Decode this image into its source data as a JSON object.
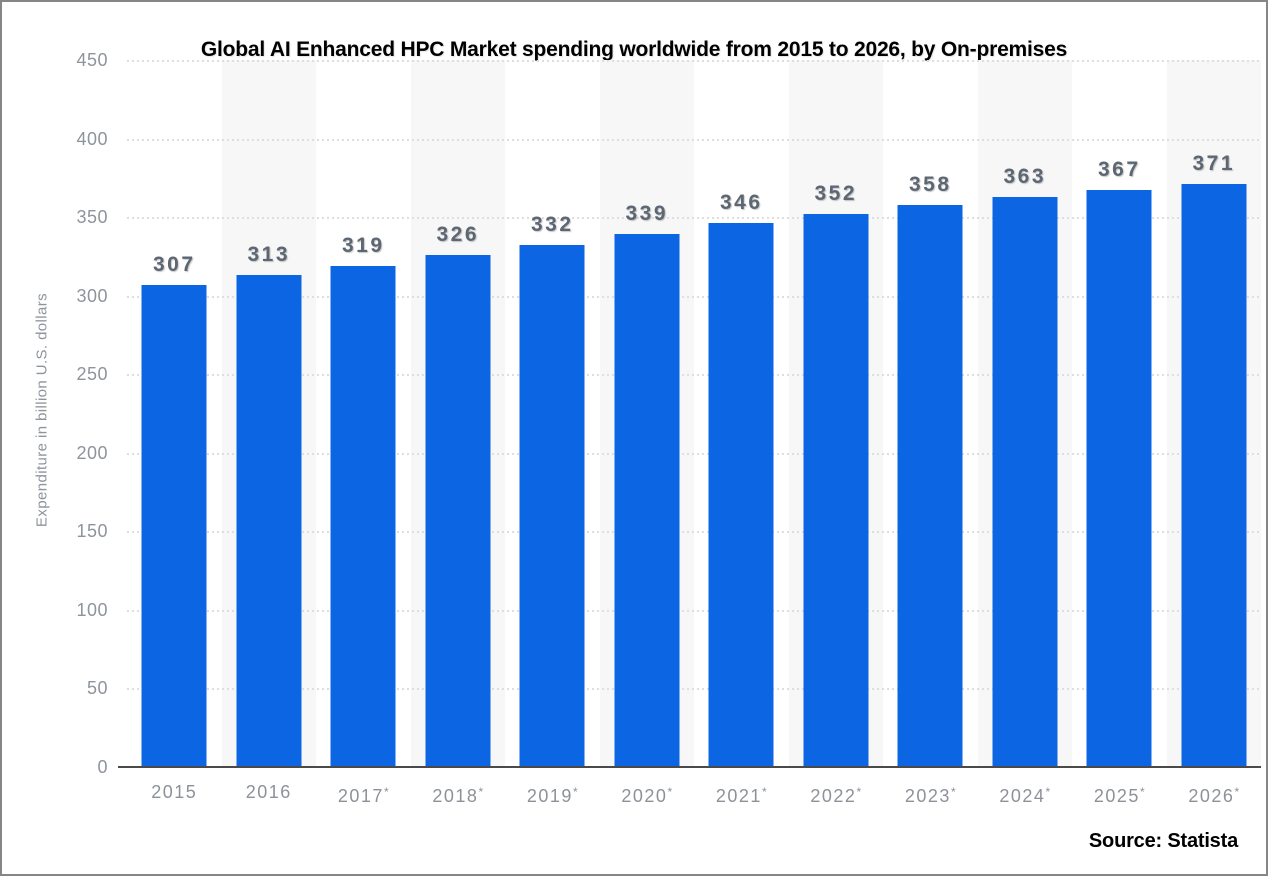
{
  "page": {
    "title": "Global AI Enhanced HPC Market spending worldwide from 2015 to 2026, by On-premises",
    "source": "Source: Statista"
  },
  "chart_data": {
    "type": "bar",
    "title": "Global AI Enhanced HPC Market spending worldwide from 2015 to 2026, by On-premises",
    "categories": [
      "2015",
      "2016",
      "2017*",
      "2018*",
      "2019*",
      "2020*",
      "2021*",
      "2022*",
      "2023*",
      "2024*",
      "2025*",
      "2026*"
    ],
    "values": [
      307,
      313,
      319,
      326,
      332,
      339,
      346,
      352,
      358,
      363,
      367,
      371
    ],
    "xlabel": "",
    "ylabel": "Expenditure in billion U.S. dollars",
    "ylim": [
      0,
      450
    ],
    "yticks": [
      0,
      50,
      100,
      150,
      200,
      250,
      300,
      350,
      400,
      450
    ],
    "grid": "horizontal-dotted",
    "legend": "none",
    "footnote_marker": "*",
    "colors": {
      "bar": "#0c66e4",
      "alt_column_band": "#f7f7f7",
      "gridline": "#dedede",
      "baseline": "#4a4a4a",
      "axis_labels": "#8e949c",
      "data_labels": "#5d6773",
      "title": "#000000"
    }
  }
}
